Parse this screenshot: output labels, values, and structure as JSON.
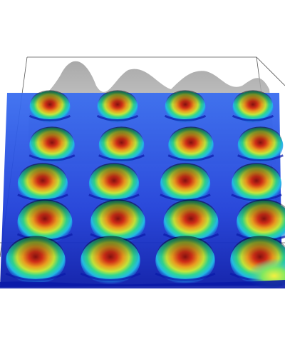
{
  "image": {
    "subject": "3d-surface-render",
    "colormap": [
      "#0a1aa8",
      "#1f3fd8",
      "#22b8e6",
      "#30d890",
      "#c8e83a",
      "#f0a020",
      "#d83018",
      "#8a1010"
    ],
    "background_color": "#ffffff",
    "wireframe_color": "#555555",
    "grid_rows": 5,
    "grid_cols": 4
  }
}
